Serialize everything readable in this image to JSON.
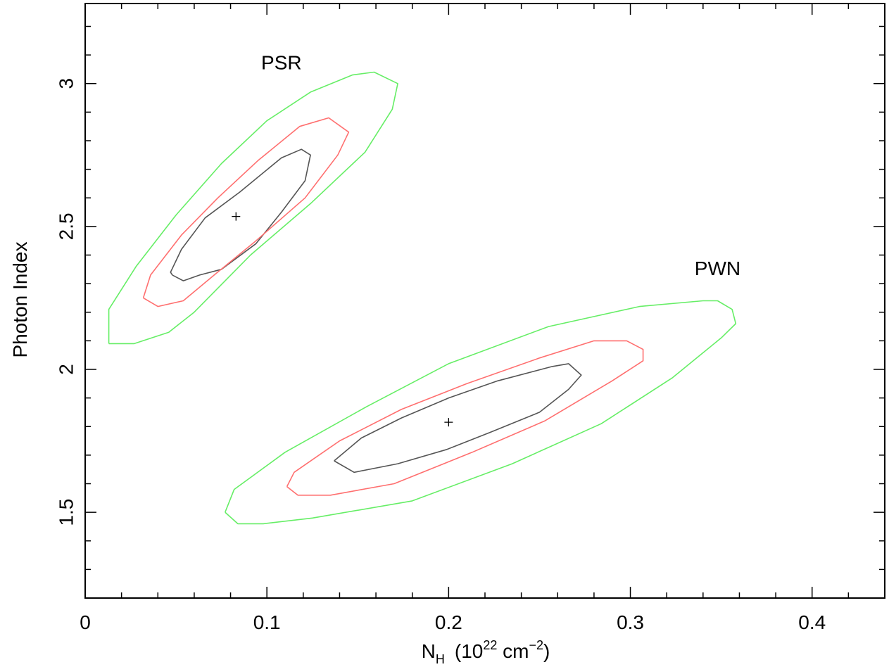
{
  "chart_data": {
    "type": "contour",
    "xlabel": {
      "main": "N",
      "sub": "H",
      "unit_open": "(10",
      "unit_exp": "22",
      "unit_mid": " cm",
      "unit_exp2": "−2",
      "unit_close": ")"
    },
    "ylabel": "Photon Index",
    "xlim": [
      0,
      0.44
    ],
    "ylim": [
      1.2,
      3.28
    ],
    "x_ticks": [
      {
        "value": 0,
        "label": "0"
      },
      {
        "value": 0.1,
        "label": "0.1"
      },
      {
        "value": 0.2,
        "label": "0.2"
      },
      {
        "value": 0.3,
        "label": "0.3"
      },
      {
        "value": 0.4,
        "label": "0.4"
      }
    ],
    "y_ticks": [
      {
        "value": 1.5,
        "label": "1.5"
      },
      {
        "value": 2,
        "label": "2"
      },
      {
        "value": 2.5,
        "label": "2.5"
      },
      {
        "value": 3,
        "label": "3"
      }
    ],
    "x_minor_step": 0.02,
    "y_minor_step": 0.1,
    "grid": false,
    "annotations": [
      {
        "text": "PSR",
        "x": 0.108,
        "y": 3.05
      },
      {
        "text": "PWN",
        "x": 0.348,
        "y": 2.33
      }
    ],
    "contour_colors": {
      "inner": "#555555",
      "middle": "#ff6f6f",
      "outer": "#66ee66"
    },
    "sources": [
      {
        "name": "PSR",
        "best_fit": {
          "x": 0.083,
          "y": 2.535
        },
        "contours": [
          {
            "level": "inner",
            "points": [
              [
                0.048,
                2.33
              ],
              [
                0.047,
                2.34
              ],
              [
                0.053,
                2.42
              ],
              [
                0.066,
                2.53
              ],
              [
                0.085,
                2.62
              ],
              [
                0.108,
                2.74
              ],
              [
                0.119,
                2.77
              ],
              [
                0.124,
                2.75
              ],
              [
                0.121,
                2.66
              ],
              [
                0.108,
                2.55
              ],
              [
                0.094,
                2.44
              ],
              [
                0.075,
                2.35
              ],
              [
                0.063,
                2.33
              ],
              [
                0.054,
                2.31
              ],
              [
                0.048,
                2.33
              ]
            ]
          },
          {
            "level": "middle",
            "points": [
              [
                0.032,
                2.25
              ],
              [
                0.036,
                2.33
              ],
              [
                0.053,
                2.47
              ],
              [
                0.073,
                2.6
              ],
              [
                0.095,
                2.73
              ],
              [
                0.118,
                2.85
              ],
              [
                0.134,
                2.88
              ],
              [
                0.145,
                2.83
              ],
              [
                0.139,
                2.75
              ],
              [
                0.121,
                2.6
              ],
              [
                0.094,
                2.45
              ],
              [
                0.071,
                2.33
              ],
              [
                0.054,
                2.24
              ],
              [
                0.04,
                2.22
              ],
              [
                0.032,
                2.25
              ]
            ]
          },
          {
            "level": "outer",
            "points": [
              [
                0.013,
                2.09
              ],
              [
                0.013,
                2.21
              ],
              [
                0.028,
                2.36
              ],
              [
                0.05,
                2.54
              ],
              [
                0.075,
                2.72
              ],
              [
                0.1,
                2.87
              ],
              [
                0.124,
                2.97
              ],
              [
                0.147,
                3.03
              ],
              [
                0.159,
                3.04
              ],
              [
                0.172,
                3.0
              ],
              [
                0.169,
                2.91
              ],
              [
                0.154,
                2.76
              ],
              [
                0.124,
                2.58
              ],
              [
                0.091,
                2.4
              ],
              [
                0.06,
                2.2
              ],
              [
                0.046,
                2.13
              ],
              [
                0.027,
                2.09
              ],
              [
                0.013,
                2.09
              ]
            ]
          }
        ]
      },
      {
        "name": "PWN",
        "best_fit": {
          "x": 0.2,
          "y": 1.815
        },
        "contours": [
          {
            "level": "inner",
            "points": [
              [
                0.137,
                1.68
              ],
              [
                0.152,
                1.76
              ],
              [
                0.174,
                1.83
              ],
              [
                0.2,
                1.9
              ],
              [
                0.227,
                1.96
              ],
              [
                0.257,
                2.01
              ],
              [
                0.266,
                2.02
              ],
              [
                0.273,
                1.98
              ],
              [
                0.266,
                1.93
              ],
              [
                0.25,
                1.85
              ],
              [
                0.223,
                1.78
              ],
              [
                0.199,
                1.72
              ],
              [
                0.172,
                1.67
              ],
              [
                0.148,
                1.64
              ],
              [
                0.137,
                1.68
              ]
            ]
          },
          {
            "level": "middle",
            "points": [
              [
                0.111,
                1.59
              ],
              [
                0.115,
                1.64
              ],
              [
                0.14,
                1.75
              ],
              [
                0.174,
                1.86
              ],
              [
                0.21,
                1.95
              ],
              [
                0.25,
                2.04
              ],
              [
                0.28,
                2.1
              ],
              [
                0.298,
                2.1
              ],
              [
                0.307,
                2.07
              ],
              [
                0.307,
                2.03
              ],
              [
                0.29,
                1.96
              ],
              [
                0.253,
                1.82
              ],
              [
                0.213,
                1.71
              ],
              [
                0.17,
                1.6
              ],
              [
                0.135,
                1.56
              ],
              [
                0.117,
                1.56
              ],
              [
                0.111,
                1.59
              ]
            ]
          },
          {
            "level": "outer",
            "points": [
              [
                0.077,
                1.5
              ],
              [
                0.082,
                1.58
              ],
              [
                0.11,
                1.71
              ],
              [
                0.155,
                1.87
              ],
              [
                0.2,
                2.02
              ],
              [
                0.255,
                2.15
              ],
              [
                0.305,
                2.22
              ],
              [
                0.34,
                2.24
              ],
              [
                0.348,
                2.24
              ],
              [
                0.356,
                2.21
              ],
              [
                0.358,
                2.16
              ],
              [
                0.35,
                2.11
              ],
              [
                0.323,
                1.97
              ],
              [
                0.284,
                1.81
              ],
              [
                0.235,
                1.67
              ],
              [
                0.18,
                1.54
              ],
              [
                0.125,
                1.48
              ],
              [
                0.098,
                1.46
              ],
              [
                0.084,
                1.46
              ],
              [
                0.077,
                1.5
              ]
            ]
          }
        ]
      }
    ]
  }
}
